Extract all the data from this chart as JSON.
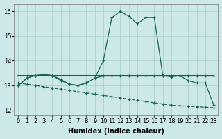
{
  "xlabel": "Humidex (Indice chaleur)",
  "background_color": "#cce8e8",
  "grid_color": "#aacccc",
  "line_color": "#1a6655",
  "x": [
    0,
    1,
    2,
    3,
    4,
    5,
    6,
    7,
    8,
    9,
    10,
    11,
    12,
    13,
    14,
    15,
    16,
    17,
    18,
    19,
    20,
    21,
    22,
    23
  ],
  "line_main": [
    13.0,
    13.3,
    13.4,
    13.45,
    13.4,
    13.25,
    13.05,
    13.0,
    13.1,
    13.3,
    14.0,
    15.75,
    16.0,
    15.8,
    15.5,
    15.75,
    15.75,
    13.4,
    13.35,
    13.4,
    13.2,
    13.1,
    13.1,
    12.2
  ],
  "line_flat": [
    13.38,
    13.38,
    13.38,
    13.38,
    13.38,
    13.38,
    13.38,
    13.38,
    13.38,
    13.38,
    13.38,
    13.38,
    13.38,
    13.38,
    13.38,
    13.38,
    13.38,
    13.38,
    13.38,
    13.38,
    13.38,
    13.38,
    13.38,
    13.38
  ],
  "line_wiggle": [
    13.0,
    13.3,
    13.4,
    13.45,
    13.4,
    13.2,
    13.05,
    13.0,
    13.1,
    13.3,
    13.38,
    13.38,
    13.38,
    13.38,
    13.38,
    13.38,
    13.38,
    13.38,
    13.38,
    13.38,
    13.38,
    13.38,
    13.38,
    13.38
  ],
  "line_diag": [
    13.1,
    13.05,
    13.0,
    12.95,
    12.9,
    12.85,
    12.8,
    12.75,
    12.7,
    12.65,
    12.6,
    12.55,
    12.5,
    12.45,
    12.4,
    12.35,
    12.3,
    12.25,
    12.2,
    12.18,
    12.16,
    12.14,
    12.12,
    12.1
  ],
  "ylim": [
    11.8,
    16.3
  ],
  "yticks": [
    12,
    13,
    14,
    15,
    16
  ],
  "xticks": [
    0,
    1,
    2,
    3,
    4,
    5,
    6,
    7,
    8,
    9,
    10,
    11,
    12,
    13,
    14,
    15,
    16,
    17,
    18,
    19,
    20,
    21,
    22,
    23
  ],
  "xlabel_fontsize": 7,
  "tick_fontsize": 6,
  "lw_main": 0.9,
  "lw_flat": 1.5,
  "marker_size": 3.0,
  "marker_lw": 0.9
}
